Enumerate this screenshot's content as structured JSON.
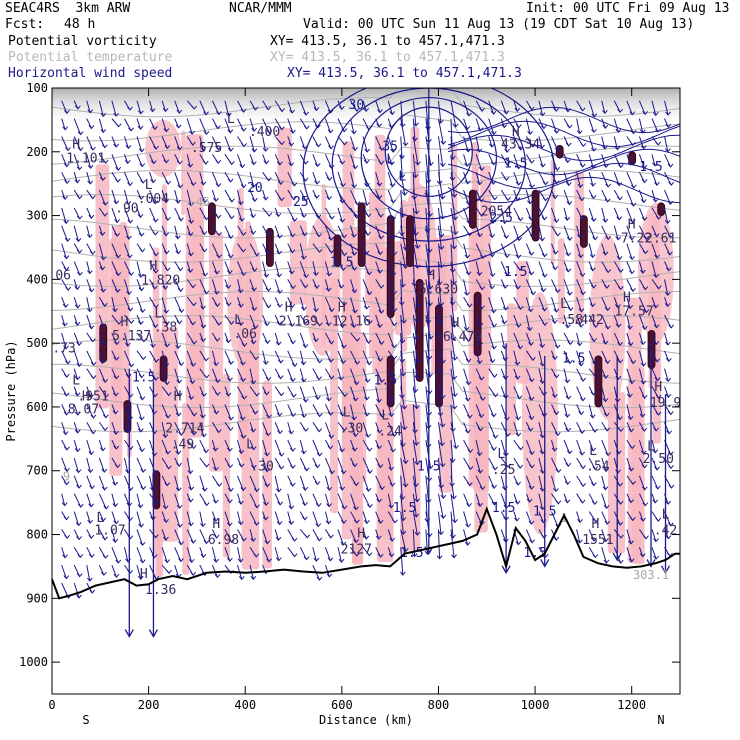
{
  "header": {
    "model": "SEAC4RS  3km ARW",
    "org": "NCAR/MMM",
    "init": "Init: 00 UTC Fri 09 Aug 13",
    "fcst_label": "Fcst:",
    "fcst_value": "48 h",
    "valid": "Valid: 00 UTC Sun 11 Aug 13 (19 CDT Sat 10 Aug 13)"
  },
  "fields": [
    {
      "name": "Potential vorticity",
      "xy": "XY= 413.5, 36.1 to 457.1,471.3",
      "color": "#000000"
    },
    {
      "name": "Potential temperature",
      "xy": "XY= 413.5, 36.1 to 457.1,471.3",
      "color": "#b8b8b8"
    },
    {
      "name": "Horizontal wind speed",
      "xy": "XY= 413.5, 36.1 to 457.1,471.3",
      "color": "#1a1a8c"
    }
  ],
  "chart_data": {
    "type": "cross-section",
    "xlabel": "Distance (km)",
    "ylabel": "Pressure (hPa)",
    "xlim": [
      0,
      1300
    ],
    "ylim": [
      1050,
      100
    ],
    "x_ticks": [
      0,
      200,
      400,
      600,
      800,
      1000,
      1200
    ],
    "y_ticks": [
      100,
      200,
      300,
      400,
      500,
      600,
      700,
      800,
      900,
      1000
    ],
    "x_ends": {
      "left": "S",
      "right": "N"
    },
    "terrain": [
      [
        0,
        870
      ],
      [
        15,
        900
      ],
      [
        40,
        895
      ],
      [
        60,
        890
      ],
      [
        90,
        880
      ],
      [
        120,
        875
      ],
      [
        150,
        870
      ],
      [
        175,
        880
      ],
      [
        200,
        878
      ],
      [
        220,
        870
      ],
      [
        250,
        865
      ],
      [
        280,
        870
      ],
      [
        320,
        860
      ],
      [
        360,
        858
      ],
      [
        400,
        860
      ],
      [
        440,
        858
      ],
      [
        480,
        855
      ],
      [
        520,
        858
      ],
      [
        560,
        860
      ],
      [
        600,
        855
      ],
      [
        640,
        850
      ],
      [
        670,
        848
      ],
      [
        700,
        850
      ],
      [
        730,
        830
      ],
      [
        760,
        825
      ],
      [
        790,
        820
      ],
      [
        820,
        815
      ],
      [
        850,
        810
      ],
      [
        880,
        800
      ],
      [
        900,
        760
      ],
      [
        920,
        800
      ],
      [
        940,
        850
      ],
      [
        960,
        790
      ],
      [
        980,
        810
      ],
      [
        1000,
        840
      ],
      [
        1020,
        830
      ],
      [
        1040,
        800
      ],
      [
        1060,
        770
      ],
      [
        1080,
        800
      ],
      [
        1100,
        835
      ],
      [
        1130,
        845
      ],
      [
        1160,
        850
      ],
      [
        1190,
        852
      ],
      [
        1220,
        850
      ],
      [
        1250,
        845
      ],
      [
        1270,
        840
      ],
      [
        1290,
        830
      ],
      [
        1300,
        830
      ]
    ],
    "pv_labels": [
      {
        "t": "H",
        "x": 50,
        "p": 195
      },
      {
        "t": "1.101",
        "x": 70,
        "p": 217
      },
      {
        "t": "L",
        "x": 200,
        "p": 258
      },
      {
        "t": ".004",
        "x": 210,
        "p": 280
      },
      {
        "t": ".90",
        "x": 155,
        "p": 295
      },
      {
        "t": "H",
        "x": 210,
        "p": 385
      },
      {
        "t": "1.820",
        "x": 225,
        "p": 408
      },
      {
        "t": ".575",
        "x": 320,
        "p": 200
      },
      {
        "t": "L",
        "x": 370,
        "p": 155
      },
      {
        "t": ".400",
        "x": 440,
        "p": 175
      },
      {
        "t": "H",
        "x": 490,
        "p": 450
      },
      {
        "t": "2.169",
        "x": 510,
        "p": 472
      },
      {
        "t": "L",
        "x": 385,
        "p": 470
      },
      {
        "t": ".06",
        "x": 400,
        "p": 492
      },
      {
        "t": "H",
        "x": 150,
        "p": 473
      },
      {
        "t": "5.137",
        "x": 165,
        "p": 495
      },
      {
        "t": "L",
        "x": 220,
        "p": 460
      },
      {
        "t": ".38",
        "x": 235,
        "p": 482
      },
      {
        "t": "H",
        "x": 70,
        "p": 590
      },
      {
        "t": ".951",
        "x": 85,
        "p": 590
      },
      {
        "t": "L",
        "x": 50,
        "p": 565
      },
      {
        "t": "8.07",
        "x": 65,
        "p": 610
      },
      {
        "t": "H",
        "x": 260,
        "p": 590
      },
      {
        "t": "2.714",
        "x": 275,
        "p": 640
      },
      {
        "t": ".49",
        "x": 270,
        "p": 665
      },
      {
        "t": ".30",
        "x": 435,
        "p": 700
      },
      {
        "t": "L",
        "x": 410,
        "p": 665
      },
      {
        "t": "H",
        "x": 600,
        "p": 450
      },
      {
        "t": "12.16",
        "x": 620,
        "p": 472
      },
      {
        "t": "L",
        "x": 610,
        "p": 615
      },
      {
        "t": ".30",
        "x": 620,
        "p": 640
      },
      {
        "t": "L",
        "x": 690,
        "p": 620
      },
      {
        "t": ".24",
        "x": 700,
        "p": 645
      },
      {
        "t": "H",
        "x": 785,
        "p": 400
      },
      {
        "t": "5.630",
        "x": 800,
        "p": 422
      },
      {
        "t": "H",
        "x": 835,
        "p": 475
      },
      {
        "t": "6.479",
        "x": 850,
        "p": 497
      },
      {
        "t": "L",
        "x": 930,
        "p": 680
      },
      {
        "t": ".25",
        "x": 935,
        "p": 705
      },
      {
        "t": "L",
        "x": 1060,
        "p": 445
      },
      {
        "t": ".58",
        "x": 1075,
        "p": 470
      },
      {
        "t": ".442",
        "x": 1110,
        "p": 470
      },
      {
        "t": "H",
        "x": 1190,
        "p": 435
      },
      {
        "t": "17.57",
        "x": 1205,
        "p": 457
      },
      {
        "t": "L",
        "x": 1120,
        "p": 675
      },
      {
        "t": ".54",
        "x": 1130,
        "p": 700
      },
      {
        "t": "H",
        "x": 1255,
        "p": 575
      },
      {
        "t": "19.9",
        "x": 1270,
        "p": 600
      },
      {
        "t": "L",
        "x": 1240,
        "p": 668
      },
      {
        "t": "2.50",
        "x": 1255,
        "p": 688
      },
      {
        "t": "H",
        "x": 1200,
        "p": 320
      },
      {
        "t": "7.22",
        "x": 1210,
        "p": 342
      },
      {
        "t": "2.61",
        "x": 1260,
        "p": 342
      },
      {
        "t": "H",
        "x": 960,
        "p": 175
      },
      {
        "t": "43.34",
        "x": 970,
        "p": 195
      },
      {
        "t": "2054",
        "x": 920,
        "p": 300
      },
      {
        "t": "L",
        "x": 100,
        "p": 780
      },
      {
        "t": "1.07",
        "x": 120,
        "p": 800
      },
      {
        "t": "H",
        "x": 340,
        "p": 790
      },
      {
        "t": "6.98",
        "x": 355,
        "p": 815
      },
      {
        "t": "H",
        "x": 190,
        "p": 868
      },
      {
        "t": "1.36",
        "x": 225,
        "p": 893
      },
      {
        "t": "H",
        "x": 640,
        "p": 805
      },
      {
        "t": "2127",
        "x": 630,
        "p": 830
      },
      {
        "t": "H",
        "x": 1125,
        "p": 790
      },
      {
        "t": "1551",
        "x": 1130,
        "p": 815
      },
      {
        "t": "L",
        "x": 1270,
        "p": 775
      },
      {
        "t": ".42",
        "x": 1270,
        "p": 800
      },
      {
        "t": ".73",
        "x": 25,
        "p": 515
      },
      {
        "t": ".06",
        "x": 15,
        "p": 400
      }
    ],
    "wind_labels": [
      {
        "t": "20",
        "x": 420,
        "p": 263
      },
      {
        "t": "25",
        "x": 515,
        "p": 285
      },
      {
        "t": "30",
        "x": 630,
        "p": 133
      },
      {
        "t": "35",
        "x": 700,
        "p": 198
      },
      {
        "t": "1.5",
        "x": 600,
        "p": 380
      },
      {
        "t": "1.5",
        "x": 690,
        "p": 565
      },
      {
        "t": "1.5",
        "x": 780,
        "p": 700
      },
      {
        "t": "1.5",
        "x": 730,
        "p": 765
      },
      {
        "t": "1.5",
        "x": 745,
        "p": 835
      },
      {
        "t": "1.5",
        "x": 1000,
        "p": 835
      },
      {
        "t": "1.5",
        "x": 1080,
        "p": 530
      },
      {
        "t": "1.5",
        "x": 960,
        "p": 395
      },
      {
        "t": "2.5",
        "x": 930,
        "p": 310
      },
      {
        "t": "1.5",
        "x": 960,
        "p": 225
      },
      {
        "t": "1.5",
        "x": 1240,
        "p": 230
      },
      {
        "t": "1.5",
        "x": 190,
        "p": 560
      },
      {
        "t": "1.5",
        "x": 935,
        "p": 765
      },
      {
        "t": "1.5",
        "x": 1020,
        "p": 770
      },
      {
        "t": "L",
        "x": 700,
        "p": 218
      },
      {
        "t": "L",
        "x": 725,
        "p": 245
      }
    ],
    "theta_labels": [
      {
        "t": ".45",
        "x": 305,
        "p": 285
      },
      {
        "t": "9",
        "x": 30,
        "p": 715
      },
      {
        "t": "303.1",
        "x": 1240,
        "p": 870
      },
      {
        "t": "1",
        "x": 1060,
        "p": 780
      }
    ]
  }
}
